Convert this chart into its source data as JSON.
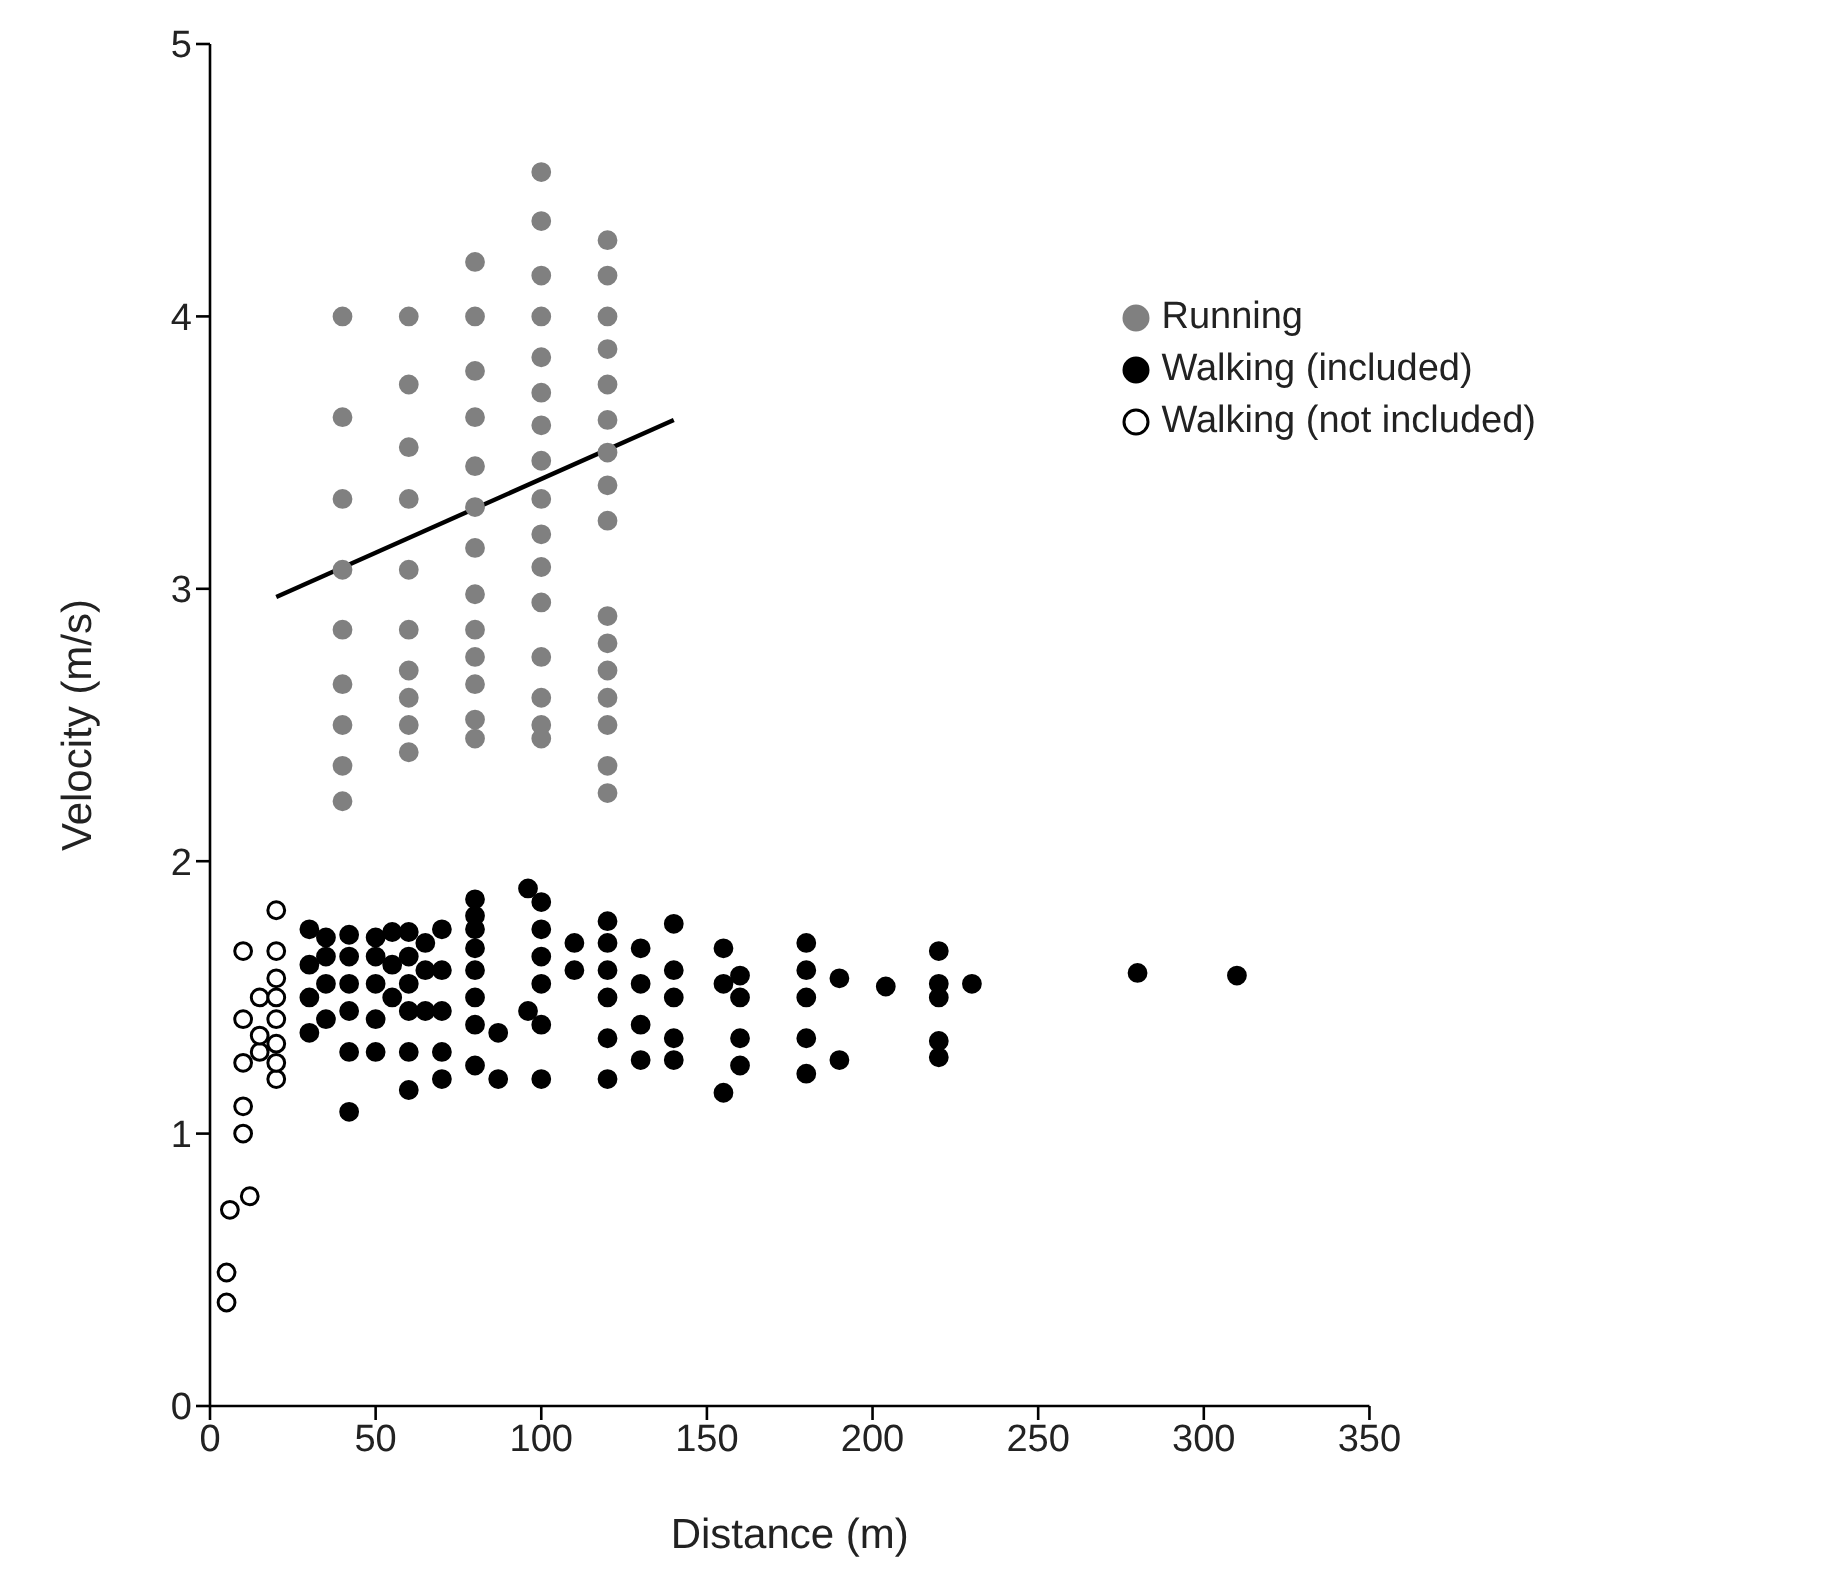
{
  "chart_data": {
    "type": "scatter",
    "xlabel": "Distance (m)",
    "ylabel": "Velocity (m/s)",
    "xlim": [
      0,
      350
    ],
    "xticks": [
      0,
      50,
      100,
      150,
      200,
      250,
      300,
      350
    ],
    "ylim": [
      0,
      5
    ],
    "yticks": [
      0,
      1,
      2,
      3,
      4,
      5
    ],
    "grid": false,
    "legend": "top right",
    "marker": "circle",
    "series": [
      {
        "name": "Running",
        "color": "#808080",
        "x": [
          40,
          40,
          40,
          40,
          40,
          40,
          40,
          40,
          40,
          60,
          60,
          60,
          60,
          60,
          60,
          60,
          60,
          60,
          60,
          80,
          80,
          80,
          80,
          80,
          80,
          80,
          80,
          80,
          80,
          80,
          80,
          80,
          100,
          100,
          100,
          100,
          100,
          100,
          100,
          100,
          100,
          100,
          100,
          100,
          100,
          100,
          100,
          100,
          120,
          120,
          120,
          120,
          120,
          120,
          120,
          120,
          120,
          120,
          120,
          120,
          120,
          120,
          120,
          120
        ],
        "values": [
          4.0,
          3.63,
          3.33,
          3.07,
          2.85,
          2.65,
          2.5,
          2.35,
          2.22,
          4.0,
          3.75,
          3.52,
          3.33,
          3.07,
          2.85,
          2.7,
          2.6,
          2.5,
          2.4,
          4.2,
          4.0,
          3.8,
          3.63,
          3.45,
          3.3,
          3.15,
          2.98,
          2.85,
          2.75,
          2.65,
          2.52,
          2.45,
          4.53,
          4.35,
          4.15,
          4.0,
          3.85,
          3.72,
          3.6,
          3.47,
          3.33,
          3.2,
          3.08,
          2.95,
          2.75,
          2.6,
          2.5,
          2.45,
          4.28,
          4.15,
          4.0,
          3.88,
          3.75,
          3.62,
          3.5,
          3.38,
          3.25,
          2.9,
          2.8,
          2.7,
          2.6,
          2.5,
          2.35,
          2.25
        ]
      },
      {
        "name": "Walking (included)",
        "color": "#000000",
        "x": [
          30,
          30,
          30,
          30,
          35,
          35,
          35,
          35,
          42,
          42,
          42,
          42,
          42,
          42,
          50,
          50,
          50,
          50,
          50,
          55,
          55,
          55,
          60,
          60,
          60,
          60,
          60,
          60,
          65,
          65,
          65,
          70,
          70,
          70,
          70,
          70,
          80,
          80,
          80,
          80,
          80,
          80,
          80,
          80,
          87,
          87,
          96,
          96,
          100,
          100,
          100,
          100,
          100,
          100,
          110,
          110,
          120,
          120,
          120,
          120,
          120,
          120,
          130,
          130,
          130,
          130,
          140,
          140,
          140,
          140,
          140,
          155,
          155,
          155,
          160,
          160,
          160,
          160,
          180,
          180,
          180,
          180,
          180,
          190,
          190,
          204,
          220,
          220,
          220,
          220,
          220,
          230,
          280,
          310
        ],
        "values": [
          1.37,
          1.5,
          1.62,
          1.75,
          1.42,
          1.55,
          1.65,
          1.72,
          1.08,
          1.3,
          1.45,
          1.55,
          1.65,
          1.73,
          1.3,
          1.42,
          1.55,
          1.65,
          1.72,
          1.5,
          1.62,
          1.74,
          1.16,
          1.3,
          1.45,
          1.55,
          1.65,
          1.74,
          1.45,
          1.6,
          1.7,
          1.2,
          1.3,
          1.45,
          1.6,
          1.75,
          1.25,
          1.4,
          1.5,
          1.6,
          1.68,
          1.75,
          1.8,
          1.86,
          1.2,
          1.37,
          1.9,
          1.45,
          1.2,
          1.4,
          1.55,
          1.65,
          1.75,
          1.85,
          1.6,
          1.7,
          1.2,
          1.35,
          1.5,
          1.6,
          1.7,
          1.78,
          1.27,
          1.4,
          1.55,
          1.68,
          1.27,
          1.35,
          1.5,
          1.6,
          1.77,
          1.15,
          1.55,
          1.68,
          1.25,
          1.35,
          1.5,
          1.58,
          1.22,
          1.35,
          1.5,
          1.6,
          1.7,
          1.27,
          1.57,
          1.54,
          1.28,
          1.34,
          1.5,
          1.55,
          1.67,
          1.55,
          1.59,
          1.58
        ]
      },
      {
        "name": "Walking (not included)",
        "color": "#ffffff",
        "x": [
          5,
          5,
          6,
          10,
          10,
          10,
          10,
          10,
          12,
          15,
          15,
          15,
          20,
          20,
          20,
          20,
          20,
          20,
          20,
          20
        ],
        "values": [
          0.38,
          0.49,
          0.72,
          1.0,
          1.1,
          1.26,
          1.42,
          1.67,
          0.77,
          1.3,
          1.36,
          1.5,
          1.2,
          1.26,
          1.33,
          1.42,
          1.5,
          1.57,
          1.67,
          1.82
        ]
      },
      {
        "type": "line",
        "marker": "none",
        "color": "#000000",
        "x": [
          20,
          140
        ],
        "values": [
          2.97,
          3.62
        ]
      }
    ]
  }
}
